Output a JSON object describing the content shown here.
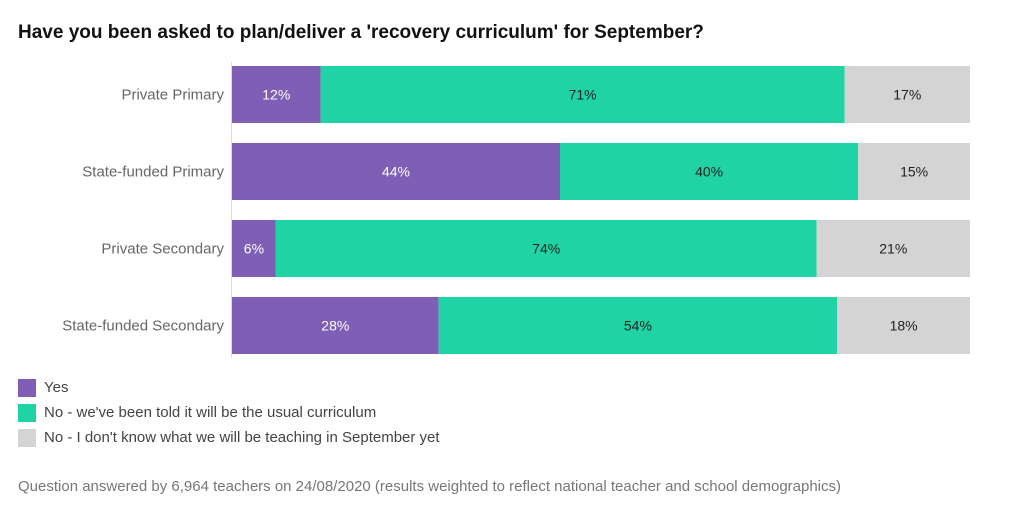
{
  "chart_data": {
    "type": "bar",
    "orientation": "horizontal",
    "stacked": true,
    "title": "Have you been asked to plan/deliver a 'recovery curriculum' for September?",
    "categories": [
      "Private Primary",
      "State-funded Primary",
      "Private Secondary",
      "State-funded Secondary"
    ],
    "series": [
      {
        "name": "Yes",
        "color": "#7e5fb5",
        "label_color": "#ffffff",
        "values": [
          12,
          44,
          6,
          28
        ]
      },
      {
        "name": "No - we've been told it will be the usual curriculum",
        "color": "#1fd3a4",
        "label_color": "#222222",
        "values": [
          71,
          40,
          74,
          54
        ]
      },
      {
        "name": "No - I don't know what we will be teaching in September yet",
        "color": "#d4d4d4",
        "label_color": "#222222",
        "values": [
          17,
          15,
          21,
          18
        ]
      }
    ],
    "value_suffix": "%",
    "legend_position": "bottom-left",
    "footnote": "Question answered by 6,964 teachers on 24/08/2020 (results weighted to reflect national teacher and school demographics)"
  }
}
